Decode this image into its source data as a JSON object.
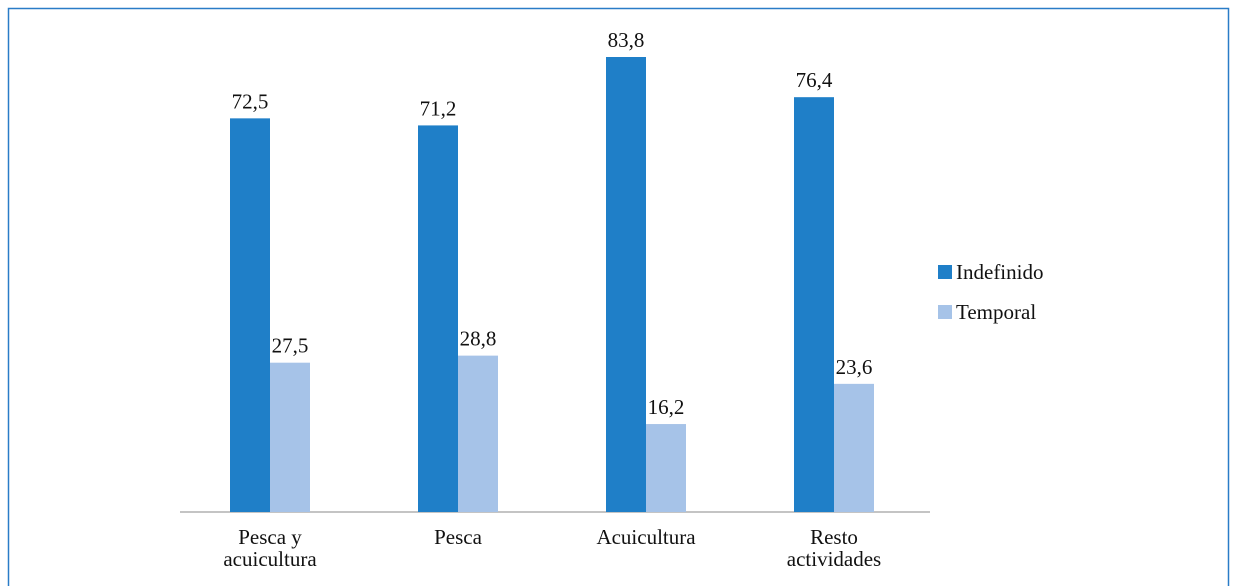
{
  "chart_data": {
    "type": "bar",
    "categories": [
      "Pesca y acuicultura",
      "Pesca",
      "Acuicultura",
      "Resto actividades"
    ],
    "series": [
      {
        "name": "Indefinido",
        "color": "#1f7fc8",
        "values": [
          72.5,
          71.2,
          83.8,
          76.4
        ],
        "value_labels": [
          "72,5",
          "71,2",
          "83,8",
          "76,4"
        ]
      },
      {
        "name": "Temporal",
        "color": "#a6c3e8",
        "values": [
          27.5,
          28.8,
          16.2,
          23.6
        ],
        "value_labels": [
          "27,5",
          "28,8",
          "16,2",
          "23,6"
        ]
      }
    ],
    "legend": "right"
  }
}
